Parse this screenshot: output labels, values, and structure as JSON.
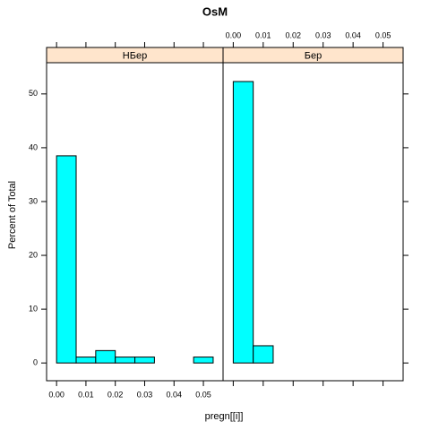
{
  "figure": {
    "title": "OsM",
    "x_label": "pregn[[i]]",
    "y_label": "Percent of Total"
  },
  "chart_data": [
    {
      "type": "histogram",
      "title": "НБер",
      "color": "#00ffff",
      "bins": [
        0,
        0.00667,
        0.01333,
        0.02,
        0.02667,
        0.03333,
        0.04,
        0.04667,
        0.05333
      ],
      "values": [
        38.5,
        1.1,
        2.3,
        1.1,
        1.1,
        0,
        0,
        1.1
      ],
      "xlim": [
        -0.0034,
        0.0567
      ],
      "ylim": [
        -3.3,
        55.8
      ],
      "xticks": [
        {
          "value": 0,
          "label": "0.00"
        },
        0.01,
        0.02,
        0.03,
        0.04,
        0.05
      ],
      "yticks": [
        0,
        10,
        20,
        30,
        40,
        50
      ]
    },
    {
      "type": "histogram",
      "title": "Бер",
      "color": "#00ffff",
      "bins": [
        0,
        0.00667,
        0.01333,
        0.02,
        0.02667,
        0.03333,
        0.04,
        0.04667,
        0.05333
      ],
      "values": [
        52.3,
        3.2,
        0,
        0,
        0,
        0,
        0,
        0
      ],
      "xlim": [
        -0.0034,
        0.0567
      ],
      "ylim": [
        -3.3,
        55.8
      ],
      "xticks": [
        {
          "value": 0,
          "label": "0.00"
        },
        0.01,
        0.02,
        0.03,
        0.04,
        0.05
      ],
      "yticks": [
        0,
        10,
        20,
        30,
        40,
        50
      ]
    }
  ]
}
